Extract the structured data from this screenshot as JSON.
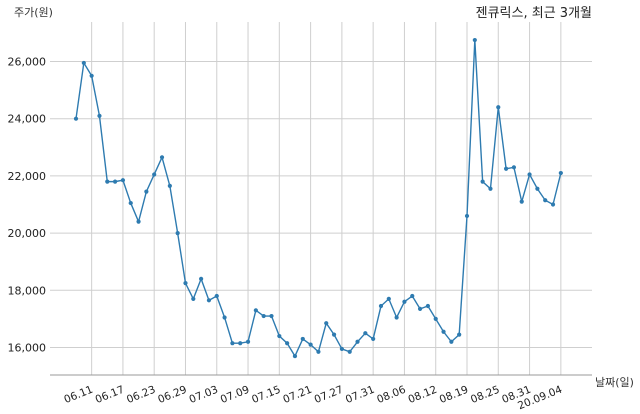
{
  "chart_data": {
    "type": "line",
    "title": "젠큐릭스, 최근 3개월",
    "ylabel": "주가(원)",
    "xlabel": "날짜(일)",
    "ylim": [
      15000,
      27300
    ],
    "yticks": [
      16000,
      18000,
      20000,
      22000,
      24000,
      26000
    ],
    "ytick_labels": [
      "16,000",
      "18,000",
      "20,000",
      "22,000",
      "24,000",
      "26,000"
    ],
    "xtick_labels": [
      "06.11",
      "06.17",
      "06.23",
      "06.29",
      "07.03",
      "07.09",
      "07.15",
      "07.21",
      "07.27",
      "07.31",
      "08.06",
      "08.12",
      "08.19",
      "08.25",
      "08.31",
      "20.09.04"
    ],
    "xtick_index": [
      2,
      6,
      10,
      14,
      18,
      22,
      26,
      30,
      34,
      38,
      42,
      46,
      50,
      54,
      58,
      62
    ],
    "grid": true,
    "color": "#2e7bb0",
    "values": [
      24000,
      25950,
      25500,
      24100,
      21800,
      21800,
      21850,
      21050,
      20400,
      21450,
      22050,
      22650,
      21650,
      20000,
      18250,
      17700,
      18400,
      17650,
      17800,
      17050,
      16150,
      16150,
      16200,
      17300,
      17100,
      17100,
      16400,
      16150,
      15700,
      16300,
      16100,
      15850,
      16850,
      16450,
      15950,
      15850,
      16200,
      16500,
      16300,
      17450,
      17700,
      17050,
      17600,
      17800,
      17350,
      17450,
      17000,
      16550,
      16200,
      16450,
      20600,
      26750,
      21800,
      21550,
      24400,
      22250,
      22300,
      21100,
      22050,
      21550,
      21150,
      21000,
      22100
    ]
  }
}
